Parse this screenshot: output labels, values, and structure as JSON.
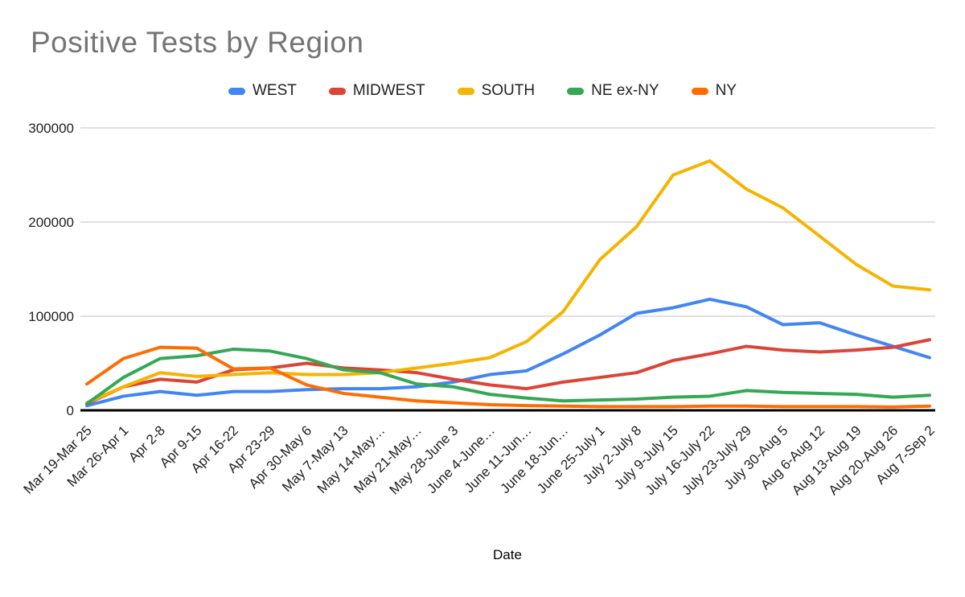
{
  "chart_data": {
    "type": "line",
    "title": "Positive Tests by Region",
    "xlabel": "Date",
    "ylabel": "",
    "ylim": [
      0,
      300000
    ],
    "yticks": [
      0,
      100000,
      200000,
      300000
    ],
    "grid": true,
    "legend_position": "top",
    "categories": [
      "Mar 19-Mar 25",
      "Mar 26-Apr 1",
      "Apr 2-8",
      "Apr 9-15",
      "Apr 16-22",
      "Apr 23-29",
      "Apr 30-May 6",
      "May 7-May 13",
      "May 14-May…",
      "May 21-May…",
      "May 28-June 3",
      "June 4-June…",
      "June 11-Jun…",
      "June 18-Jun…",
      "June 25-July 1",
      "July 2-July 8",
      "July 9-July 15",
      "July 16-July 22",
      "July 23-July 29",
      "July 30-Aug 5",
      "Aug 6-Aug 12",
      "Aug 13-Aug 19",
      "Aug 20-Aug 26",
      "Aug 7-Sep 2"
    ],
    "series": [
      {
        "name": "WEST",
        "color": "#4285F4",
        "values": [
          5000,
          15000,
          20000,
          16000,
          20000,
          20000,
          22000,
          23000,
          23000,
          25000,
          30000,
          38000,
          42000,
          60000,
          80000,
          103000,
          109000,
          118000,
          110000,
          91000,
          93000,
          80000,
          68000,
          56000
        ]
      },
      {
        "name": "MIDWEST",
        "color": "#DB4437",
        "values": [
          7000,
          25000,
          33000,
          30000,
          43000,
          45000,
          50000,
          45000,
          43000,
          40000,
          33000,
          27000,
          23000,
          30000,
          35000,
          40000,
          53000,
          60000,
          68000,
          64000,
          62000,
          64000,
          67000,
          75000
        ]
      },
      {
        "name": "SOUTH",
        "color": "#F4B400",
        "values": [
          8000,
          25000,
          40000,
          36000,
          38000,
          40000,
          38000,
          38000,
          40000,
          45000,
          50000,
          56000,
          73000,
          105000,
          160000,
          195000,
          250000,
          265000,
          235000,
          215000,
          185000,
          155000,
          132000,
          128000
        ]
      },
      {
        "name": "NE ex-NY",
        "color": "#34A853",
        "values": [
          7000,
          35000,
          55000,
          58000,
          65000,
          63000,
          55000,
          43000,
          40000,
          28000,
          25000,
          17000,
          13000,
          10000,
          11000,
          12000,
          14000,
          15000,
          21000,
          19000,
          18000,
          17000,
          14000,
          16000
        ]
      },
      {
        "name": "NY",
        "color": "#FF6D01",
        "values": [
          28000,
          55000,
          67000,
          66000,
          44000,
          45000,
          27000,
          18000,
          14000,
          10000,
          8000,
          6000,
          5000,
          4500,
          4000,
          4000,
          4000,
          4500,
          4500,
          4000,
          4000,
          4000,
          3500,
          4500
        ]
      }
    ]
  }
}
